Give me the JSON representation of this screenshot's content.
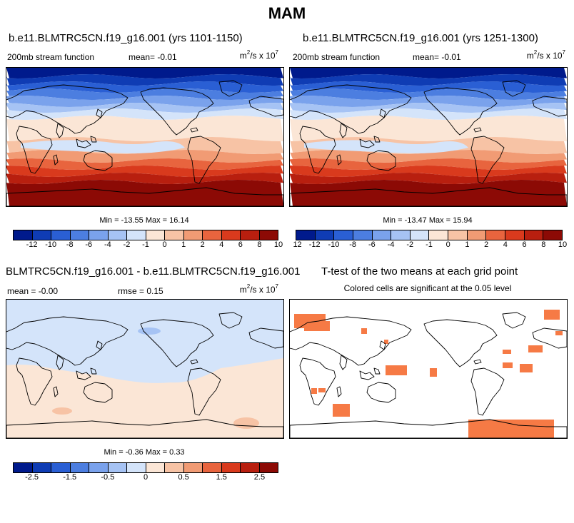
{
  "title": "MAM",
  "panels": [
    {
      "id": "p1",
      "title": "b.e11.BLMTRC5CN.f19_g16.001 (yrs 1101-1150)",
      "left_label": "200mb stream function",
      "center_label": "mean=  -0.01",
      "units_base": "m",
      "units_sup1": "2",
      "units_mid": "/s x 10",
      "units_sup2": "7",
      "minmax": "Min = -13.55 Max =  16.14",
      "colorbar": "full",
      "field": "full"
    },
    {
      "id": "p2",
      "title": "b.e11.BLMTRC5CN.f19_g16.001 (yrs 1251-1300)",
      "left_label": "200mb stream function",
      "center_label": "mean=  -0.01",
      "units_base": "m",
      "units_sup1": "2",
      "units_mid": "/s x 10",
      "units_sup2": "7",
      "minmax": "Min = -13.47 Max =  15.94",
      "colorbar": "full",
      "field": "full"
    },
    {
      "id": "p3",
      "title": "BLMTRC5CN.f19_g16.001 - b.e11.BLMTRC5CN.f19_g16.001",
      "left_label": "mean =  -0.00",
      "center_label": "rmse =  0.15",
      "units_base": "m",
      "units_sup1": "2",
      "units_mid": "/s x 10",
      "units_sup2": "7",
      "minmax": "Min =  -0.36 Max =  0.33",
      "colorbar": "diff",
      "field": "diff"
    },
    {
      "id": "p4",
      "title": "T-test of the two means at each grid point",
      "subtitle": "Colored cells are significant at the 0.05 level",
      "field": "ttest"
    }
  ],
  "colorbars": {
    "full": {
      "colors": [
        "#001a8c",
        "#0f3cb4",
        "#2a5fd4",
        "#4c7ee0",
        "#7aa2ec",
        "#a6c3f4",
        "#d4e4fa",
        "#fbe6d6",
        "#f7c3a5",
        "#f19b74",
        "#e8643e",
        "#d93a1d",
        "#b81f0f",
        "#8c0a05"
      ],
      "tick_labels": [
        "-12",
        "-10",
        "-8",
        "-6",
        "-4",
        "-2",
        "-1",
        "0",
        "1",
        "2",
        "4",
        "6",
        "8",
        "10",
        "12"
      ]
    },
    "diff": {
      "colors": [
        "#001a8c",
        "#0f3cb4",
        "#2a5fd4",
        "#4c7ee0",
        "#7aa2ec",
        "#a6c3f4",
        "#d4e4fa",
        "#fbe6d6",
        "#f7c3a5",
        "#f19b74",
        "#e8643e",
        "#d93a1d",
        "#b81f0f",
        "#8c0a05"
      ],
      "tick_labels": [
        "-2.5",
        "",
        "-1.5",
        "",
        "-0.5",
        "",
        "0",
        "",
        "0.5",
        "",
        "1.5",
        "",
        "2.5"
      ]
    }
  },
  "ttest_color": "#f67a45"
}
